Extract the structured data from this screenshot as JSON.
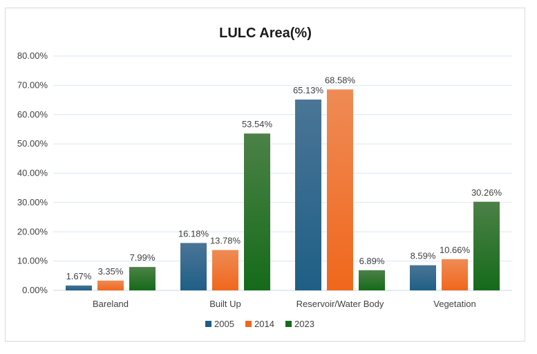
{
  "chart_data": {
    "type": "bar",
    "title": "LULC Area(%)",
    "categories": [
      "Bareland",
      "Built Up",
      "Reservoir/Water Body",
      "Vegetation"
    ],
    "series": [
      {
        "name": "2005",
        "values": [
          1.67,
          16.18,
          65.13,
          8.59
        ],
        "color": "#1f5f86",
        "color_light": "#4a7596",
        "labels": [
          "1.67%",
          "16.18%",
          "65.13%",
          "8.59%"
        ]
      },
      {
        "name": "2014",
        "values": [
          3.35,
          13.78,
          68.58,
          10.66
        ],
        "color": "#f0671c",
        "color_light": "#ef8b55",
        "labels": [
          "3.35%",
          "13.78%",
          "68.58%",
          "10.66%"
        ]
      },
      {
        "name": "2023",
        "values": [
          7.99,
          53.54,
          6.89,
          30.26
        ],
        "color": "#156b1a",
        "color_light": "#4c8147",
        "labels": [
          "7.99%",
          "53.54%",
          "6.89%",
          "30.26%"
        ]
      }
    ],
    "ylim": [
      0,
      80
    ],
    "yticks": [
      0,
      10,
      20,
      30,
      40,
      50,
      60,
      70,
      80
    ],
    "ytick_labels": [
      "0.00%",
      "10.00%",
      "20.00%",
      "30.00%",
      "40.00%",
      "50.00%",
      "60.00%",
      "70.00%",
      "80.00%"
    ],
    "xlabel": "",
    "ylabel": "",
    "grid": true,
    "gridline_color": "#d9e6f2",
    "legend_position": "bottom"
  }
}
